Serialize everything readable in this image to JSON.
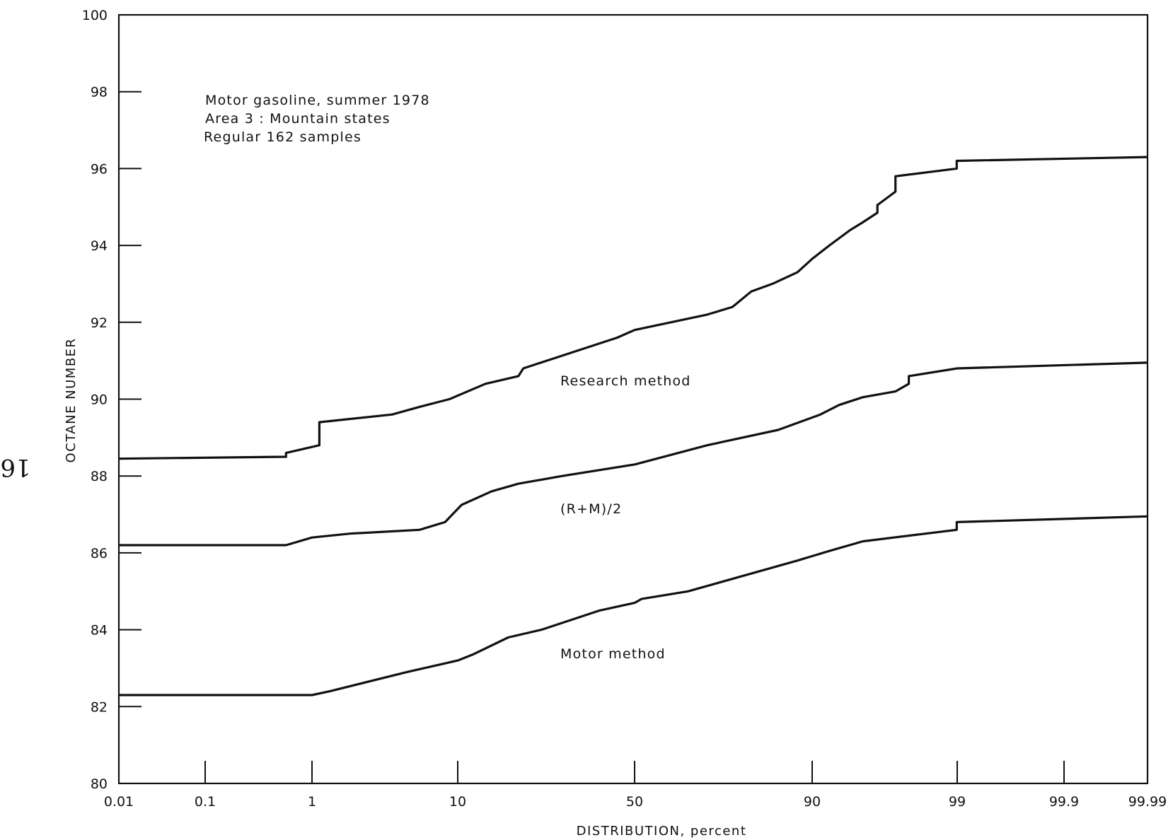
{
  "page_number": "16",
  "chart_data": {
    "type": "line",
    "xlabel": "DISTRIBUTION, percent",
    "ylabel": "OCTANE NUMBER",
    "x_scale": "probability",
    "ylim": [
      80,
      100
    ],
    "y_ticks": [
      80,
      82,
      84,
      86,
      88,
      90,
      92,
      94,
      96,
      98,
      100
    ],
    "x_ticks": [
      "0.01",
      "0.1",
      "1",
      "10",
      "50",
      "90",
      "99",
      "99.9",
      "99.99"
    ],
    "grid": false,
    "title_lines": [
      "Motor gasoline, summer 1978",
      "Area 3 : Mountain states",
      "Regular  162 samples"
    ],
    "series": [
      {
        "name": "Research method",
        "x": [
          0.01,
          0.6,
          0.6,
          1.15,
          1.15,
          4,
          6,
          9,
          14,
          20,
          21,
          45,
          50,
          70,
          76,
          80,
          84,
          88,
          90,
          92,
          94,
          95,
          96,
          96,
          97,
          97,
          98.99,
          98.99,
          99.99
        ],
        "y": [
          88.45,
          88.5,
          88.6,
          88.8,
          89.4,
          89.6,
          89.8,
          90.0,
          90.4,
          90.6,
          90.8,
          91.6,
          91.8,
          92.2,
          92.4,
          92.8,
          93.0,
          93.3,
          93.65,
          94.0,
          94.4,
          94.6,
          94.85,
          95.05,
          95.4,
          95.8,
          96.0,
          96.2,
          96.3
        ]
      },
      {
        "name": "(R+M)/2",
        "x": [
          0.01,
          0.6,
          1.0,
          2,
          6,
          8.5,
          10.5,
          15,
          20,
          30,
          50,
          70,
          85,
          91,
          93,
          95,
          97,
          97.6,
          97.6,
          99,
          99.99
        ],
        "y": [
          86.2,
          86.2,
          86.4,
          86.5,
          86.6,
          86.8,
          87.25,
          87.6,
          87.8,
          88.0,
          88.3,
          88.8,
          89.2,
          89.6,
          89.85,
          90.05,
          90.2,
          90.4,
          90.6,
          90.8,
          90.95
        ]
      },
      {
        "name": "Motor method",
        "x": [
          0.01,
          1.0,
          1.4,
          5,
          10,
          12,
          18,
          25,
          40,
          50,
          52,
          65,
          88,
          92,
          95,
          98.99,
          98.99,
          99.99
        ],
        "y": [
          82.3,
          82.3,
          82.4,
          82.9,
          83.2,
          83.35,
          83.8,
          84.0,
          84.5,
          84.7,
          84.8,
          85.0,
          85.8,
          86.05,
          86.3,
          86.6,
          86.8,
          86.95
        ]
      }
    ]
  }
}
